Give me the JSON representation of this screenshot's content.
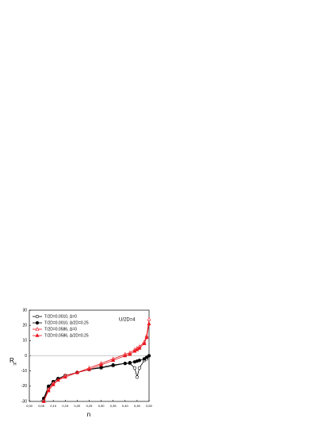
{
  "chart_data": {
    "type": "line",
    "annotation": "U/2D=4",
    "xlabel": "n",
    "ylabel": "R",
    "ylabel_subscript": "H",
    "x": [
      0.06,
      0.08,
      0.1,
      0.12,
      0.15,
      0.2,
      0.25,
      0.3,
      0.35,
      0.4,
      0.42,
      0.44,
      0.45,
      0.46,
      0.48,
      0.49,
      0.5
    ],
    "series": [
      {
        "name": "T/2D=0.0010, Δ=0",
        "color": "#000000",
        "marker": "open-circle",
        "values": [
          -29,
          -21,
          -17,
          -15,
          -13,
          -11,
          -9,
          -8,
          -6.5,
          -5,
          -5,
          -8,
          -14,
          -8,
          -3,
          -2,
          0
        ]
      },
      {
        "name": "T/2D=0.0010, Δ/2D=0.25",
        "color": "#000000",
        "marker": "filled-circle",
        "values": [
          -28,
          -20,
          -17,
          -15,
          -13,
          -11,
          -9,
          -7.5,
          -6,
          -5,
          -4.5,
          -4,
          -3.5,
          -3,
          -2,
          -1,
          0
        ]
      },
      {
        "name": "T/2D=0.0586, Δ=0",
        "color": "#e8141c",
        "marker": "open-triangle",
        "values": [
          -30,
          -22,
          -18,
          -16,
          -13,
          -11,
          -8,
          -5,
          -2,
          1,
          2,
          4,
          5,
          6,
          9,
          13,
          24
        ]
      },
      {
        "name": "T/2D=0.0586, Δ/2D=0.25",
        "color": "#e8141c",
        "marker": "filled-triangle",
        "values": [
          -30,
          -23,
          -19,
          -16,
          -14,
          -11,
          -9,
          -6,
          -3,
          0,
          1,
          3,
          4,
          5,
          8,
          12,
          21
        ]
      }
    ],
    "xlim": [
      0,
      0.5
    ],
    "xticks": [
      {
        "value": 0,
        "label": "0,00"
      },
      {
        "value": 0.05,
        "label": "0,05"
      },
      {
        "value": 0.1,
        "label": "0,10"
      },
      {
        "value": 0.15,
        "label": "0,15"
      },
      {
        "value": 0.2,
        "label": "0,20"
      },
      {
        "value": 0.25,
        "label": "0,25"
      },
      {
        "value": 0.3,
        "label": "0,30"
      },
      {
        "value": 0.35,
        "label": "0,35"
      },
      {
        "value": 0.4,
        "label": "0,40"
      },
      {
        "value": 0.45,
        "label": "0,45"
      },
      {
        "value": 0.5,
        "label": "0,50"
      }
    ],
    "ylim": [
      -30,
      30
    ],
    "yticks": [
      -30,
      -20,
      -10,
      0,
      10,
      20,
      30
    ],
    "zero_line": true,
    "legend": "upper-left"
  }
}
